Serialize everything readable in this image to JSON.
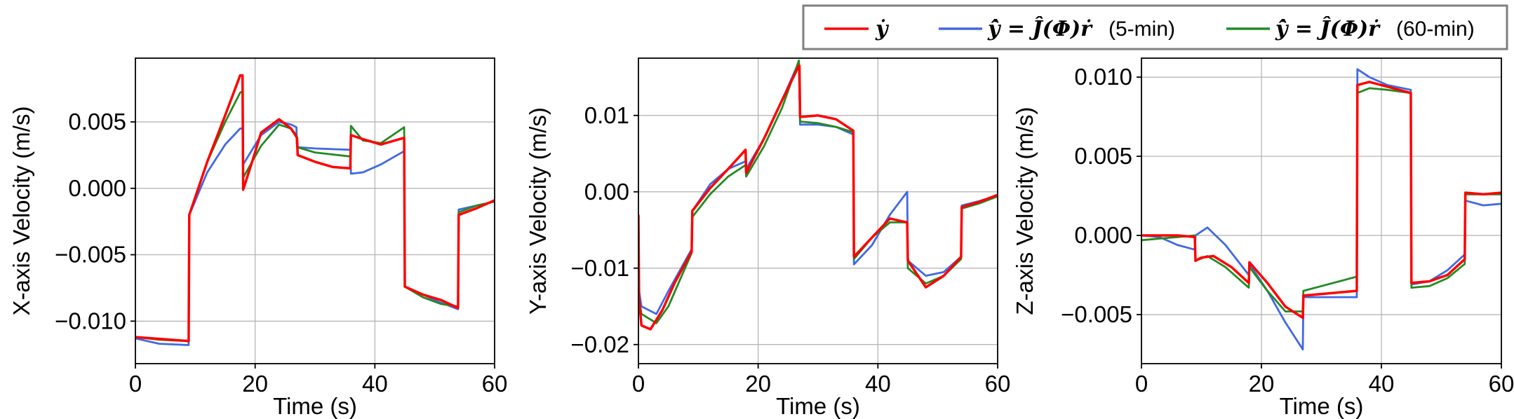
{
  "legend": {
    "placement": "top-right",
    "entries": [
      {
        "key": "y",
        "label": "ẏ",
        "suffix": "",
        "color": "#ff0000"
      },
      {
        "key": "y5",
        "label": "ẏ̂ = Ĵ(Φ)ṙ",
        "suffix": "(5-min)",
        "color": "#4169e1"
      },
      {
        "key": "y60",
        "label": "ẏ̂ = Ĵ(Φ)ṙ",
        "suffix": "(60-min)",
        "color": "#228b22"
      }
    ]
  },
  "chart_data": [
    {
      "type": "line",
      "xlabel": "Time (s)",
      "ylabel": "X-axis Velocity (m/s)",
      "xlim": [
        0,
        60
      ],
      "ylim": [
        -0.0132,
        0.0098
      ],
      "xticks": [
        0,
        20,
        40,
        60
      ],
      "xtick_labels": [
        "0",
        "20",
        "40",
        "60"
      ],
      "yticks": [
        -0.01,
        -0.005,
        0.0,
        0.005
      ],
      "ytick_labels": [
        "−0.010",
        "−0.005",
        "0.000",
        "0.005"
      ],
      "grid": true,
      "series": [
        {
          "key": "y",
          "color": "#ff0000",
          "x": [
            0,
            3,
            6,
            8.9,
            9.0,
            12,
            15,
            17.5,
            17.9,
            18.0,
            19.5,
            21,
            24,
            26,
            27,
            27.1,
            30,
            33,
            35.9,
            36.0,
            38,
            41,
            44.9,
            45.0,
            48,
            51,
            53.9,
            54.0,
            57,
            60
          ],
          "y": [
            -0.0112,
            -0.0113,
            -0.0114,
            -0.0115,
            -0.002,
            0.002,
            0.0055,
            0.0085,
            0.0085,
            -0.0001,
            0.002,
            0.0042,
            0.0052,
            0.0045,
            0.0038,
            0.0025,
            0.002,
            0.0016,
            0.0015,
            0.004,
            0.0037,
            0.0033,
            0.0038,
            -0.0074,
            -0.008,
            -0.0084,
            -0.009,
            -0.002,
            -0.0015,
            -0.0009
          ]
        },
        {
          "key": "y5",
          "color": "#4169e1",
          "x": [
            0,
            4,
            8.9,
            9.0,
            12,
            15,
            17.5,
            17.9,
            18.0,
            21,
            24,
            26,
            26.9,
            27.0,
            30,
            35.9,
            36.0,
            38,
            41,
            44.9,
            45.0,
            48,
            51,
            53.9,
            54.0,
            57,
            60
          ],
          "y": [
            -0.0113,
            -0.0117,
            -0.0118,
            -0.002,
            0.0012,
            0.0033,
            0.0045,
            0.0045,
            0.0018,
            0.004,
            0.005,
            0.0048,
            0.0046,
            0.0031,
            0.003,
            0.0029,
            0.0011,
            0.0012,
            0.0018,
            0.0028,
            -0.0074,
            -0.008,
            -0.0086,
            -0.0091,
            -0.0016,
            -0.0013,
            -0.001
          ]
        },
        {
          "key": "y60",
          "color": "#228b22",
          "x": [
            0,
            4,
            8.9,
            9.0,
            12,
            15,
            17.5,
            17.9,
            18.0,
            21,
            24,
            26,
            26.9,
            27.0,
            30,
            35.9,
            36.0,
            38,
            41,
            44.9,
            45.0,
            48,
            51,
            53.9,
            54.0,
            57,
            60
          ],
          "y": [
            -0.0112,
            -0.0114,
            -0.0115,
            -0.002,
            0.002,
            0.005,
            0.0072,
            0.0073,
            0.0008,
            0.0032,
            0.0048,
            0.0045,
            0.004,
            0.0031,
            0.0027,
            0.0024,
            0.0047,
            0.0036,
            0.0034,
            0.0046,
            -0.0074,
            -0.0082,
            -0.0087,
            -0.0089,
            -0.0018,
            -0.0013,
            -0.001
          ]
        }
      ]
    },
    {
      "type": "line",
      "xlabel": "Time (s)",
      "ylabel": "Y-axis Velocity (m/s)",
      "xlim": [
        0,
        60
      ],
      "ylim": [
        -0.0225,
        0.0175
      ],
      "xticks": [
        0,
        20,
        40,
        60
      ],
      "xtick_labels": [
        "0",
        "20",
        "40",
        "60"
      ],
      "yticks": [
        -0.02,
        -0.01,
        0.0,
        0.01
      ],
      "ytick_labels": [
        "−0.02",
        "−0.01",
        "0.00",
        "0.01"
      ],
      "grid": true,
      "series": [
        {
          "key": "y",
          "color": "#ff0000",
          "x": [
            0,
            0.1,
            0.5,
            2,
            4,
            6,
            8.9,
            9.0,
            12,
            15,
            17.9,
            18.0,
            21,
            24,
            26.8,
            26.9,
            27.0,
            30,
            33,
            35.9,
            36.0,
            39,
            42,
            44.9,
            45.0,
            48,
            51,
            53.9,
            54.0,
            57,
            60
          ],
          "y": [
            -0.003,
            -0.014,
            -0.0175,
            -0.018,
            -0.0155,
            -0.012,
            -0.0078,
            -0.0025,
            0.0005,
            0.003,
            0.0055,
            0.0025,
            0.007,
            0.012,
            0.0165,
            0.0165,
            0.0098,
            0.01,
            0.0095,
            0.008,
            -0.0085,
            -0.006,
            -0.0035,
            -0.004,
            -0.009,
            -0.0125,
            -0.011,
            -0.0085,
            -0.002,
            -0.0013,
            -0.0004
          ]
        },
        {
          "key": "y5",
          "color": "#4169e1",
          "x": [
            0,
            0.1,
            0.5,
            3,
            5,
            8.9,
            9.0,
            12,
            15,
            17.9,
            18.0,
            21,
            24,
            26.8,
            27.0,
            30,
            33,
            35.9,
            36.0,
            39,
            42,
            44.9,
            45.0,
            48,
            51,
            53.9,
            54.0,
            57,
            60
          ],
          "y": [
            -0.003,
            -0.013,
            -0.015,
            -0.016,
            -0.013,
            -0.0075,
            -0.0025,
            0.001,
            0.003,
            0.004,
            0.003,
            0.007,
            0.012,
            0.017,
            0.0088,
            0.0088,
            0.0085,
            0.0075,
            -0.0095,
            -0.007,
            -0.003,
            0.0,
            -0.009,
            -0.011,
            -0.0105,
            -0.0085,
            -0.0018,
            -0.0012,
            -0.0005
          ]
        },
        {
          "key": "y60",
          "color": "#228b22",
          "x": [
            0,
            0.1,
            0.5,
            3,
            5,
            8.9,
            9.0,
            12,
            15,
            17.9,
            18.0,
            21,
            24,
            26.8,
            27.0,
            30,
            33,
            35.9,
            36.0,
            39,
            42,
            44.9,
            45.0,
            48,
            51,
            53.9,
            54.0,
            57,
            60
          ],
          "y": [
            -0.003,
            -0.014,
            -0.016,
            -0.0172,
            -0.015,
            -0.008,
            -0.0033,
            -0.0003,
            0.002,
            0.0035,
            0.002,
            0.006,
            0.011,
            0.0172,
            0.0092,
            0.009,
            0.0085,
            0.0078,
            -0.0088,
            -0.006,
            -0.004,
            -0.004,
            -0.01,
            -0.012,
            -0.011,
            -0.0088,
            -0.0022,
            -0.0015,
            -0.0006
          ]
        }
      ]
    },
    {
      "type": "line",
      "xlabel": "Time (s)",
      "ylabel": "Z-axis Velocity (m/s)",
      "xlim": [
        0,
        60
      ],
      "ylim": [
        -0.0081,
        0.0112
      ],
      "xticks": [
        0,
        20,
        40,
        60
      ],
      "xtick_labels": [
        "0",
        "20",
        "40",
        "60"
      ],
      "yticks": [
        -0.005,
        0.0,
        0.005,
        0.01
      ],
      "ytick_labels": [
        "−0.005",
        "0.000",
        "0.005",
        "0.010"
      ],
      "grid": true,
      "series": [
        {
          "key": "y",
          "color": "#ff0000",
          "x": [
            0,
            3,
            6,
            8.9,
            9.0,
            10,
            12,
            15,
            17.9,
            18.0,
            21,
            24,
            26.9,
            27.0,
            30,
            33,
            35.9,
            36.0,
            38,
            41,
            44.9,
            45.0,
            48,
            51,
            53.9,
            54.0,
            57,
            60
          ],
          "y": [
            0.0,
            0.0,
            0.0,
            -0.0001,
            -0.0016,
            -0.0014,
            -0.0013,
            -0.002,
            -0.003,
            -0.0017,
            -0.003,
            -0.0045,
            -0.0052,
            -0.0038,
            -0.0037,
            -0.0036,
            -0.0035,
            0.0095,
            0.0097,
            0.0094,
            0.009,
            -0.003,
            -0.0029,
            -0.0025,
            -0.0015,
            0.0027,
            0.0026,
            0.0027
          ]
        },
        {
          "key": "y5",
          "color": "#4169e1",
          "x": [
            0,
            3,
            6,
            8.9,
            9.0,
            11,
            14,
            17.9,
            18.0,
            21,
            24,
            26.9,
            27.0,
            30,
            33,
            35.9,
            36.0,
            38,
            41,
            44.9,
            45.0,
            48,
            51,
            53.9,
            54.0,
            57,
            60
          ],
          "y": [
            0.0,
            -0.0001,
            -0.0006,
            -0.0009,
            0.0,
            0.0005,
            -0.0006,
            -0.0025,
            -0.0018,
            -0.0035,
            -0.0055,
            -0.0072,
            -0.0039,
            -0.0039,
            -0.0039,
            -0.0039,
            0.0105,
            0.01,
            0.0095,
            0.0092,
            -0.0031,
            -0.0029,
            -0.0022,
            -0.0012,
            0.0022,
            0.0019,
            0.002
          ]
        },
        {
          "key": "y60",
          "color": "#228b22",
          "x": [
            0,
            3,
            6,
            8.9,
            9.0,
            11,
            14,
            17.9,
            18.0,
            21,
            24,
            26.9,
            27.0,
            30,
            33,
            35.9,
            36.0,
            38,
            41,
            44.9,
            45.0,
            48,
            51,
            53.9,
            54.0,
            57,
            60
          ],
          "y": [
            -0.0003,
            -0.0002,
            -0.0001,
            0.0,
            -0.0016,
            -0.0013,
            -0.002,
            -0.0033,
            -0.002,
            -0.0035,
            -0.0048,
            -0.0048,
            -0.0035,
            -0.0032,
            -0.0029,
            -0.0026,
            0.009,
            0.0093,
            0.0092,
            0.009,
            -0.0033,
            -0.0032,
            -0.0027,
            -0.0018,
            0.0026,
            0.0026,
            0.0026
          ]
        }
      ]
    }
  ]
}
